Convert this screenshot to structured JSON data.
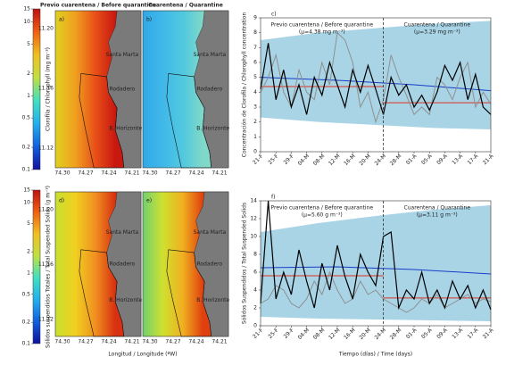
{
  "maps": {
    "colorbars": [
      {
        "label": "Clorofila / Chlorophyll (mg m⁻³)",
        "lim": [
          0.1,
          15
        ],
        "ticks": [
          0.1,
          0.2,
          0.5,
          1,
          2,
          5,
          10,
          15
        ],
        "log": true
      },
      {
        "label": "Sólidos suspendidos Totales / Total Suspended Solids (g m⁻³)",
        "lim": [
          0.1,
          15
        ],
        "ticks": [
          0.1,
          0.2,
          0.5,
          1,
          2,
          5,
          10,
          15
        ],
        "log": true
      }
    ],
    "panels": [
      {
        "letter": "a)",
        "title": "Previo cuarentena / Before quarantine",
        "colors": [
          "#e0d020",
          "#f0a020",
          "#e85018",
          "#c81810"
        ]
      },
      {
        "letter": "b)",
        "title": "Cuarentena / Quarantine",
        "colors": [
          "#30a8e8",
          "#40b8e8",
          "#50c8e0",
          "#80d8c8"
        ]
      },
      {
        "letter": "d)",
        "title": "",
        "colors": [
          "#c8e030",
          "#f0d020",
          "#f09020",
          "#d83010"
        ]
      },
      {
        "letter": "e)",
        "title": "",
        "colors": [
          "#70d070",
          "#d0e030",
          "#f0b020",
          "#e04010"
        ]
      }
    ],
    "places": [
      "Santa Marta",
      "Rodadero",
      "B. Horizonte"
    ],
    "lat_ticks": [
      "11.20",
      "11.16",
      "11.12"
    ],
    "lon_ticks": [
      "74.30",
      "74.27",
      "74.24",
      "74.21"
    ],
    "x_label": "Longitud / Longitude (ºW)"
  },
  "chart_data": [
    {
      "type": "line",
      "letter": "c)",
      "y_label": "Concentración de Clorofila / Chlorophyll concentration",
      "annotations": [
        "Previo cuarentena / Before quarantine",
        "(μ=4.38 mg m⁻³)",
        "Cuarentena / Quarantine",
        "(μ=3.29 mg m⁻³)"
      ],
      "xlim": [
        0,
        60
      ],
      "ylim": [
        0,
        9
      ],
      "yticks": [
        0,
        1,
        2,
        3,
        4,
        5,
        6,
        7,
        8,
        9
      ],
      "divider": 32,
      "xticks": [
        {
          "value": 0,
          "label": "21-F"
        },
        {
          "value": 4,
          "label": "25-F"
        },
        {
          "value": 8,
          "label": "29-F"
        },
        {
          "value": 12,
          "label": "04-M"
        },
        {
          "value": 16,
          "label": "08-M"
        },
        {
          "value": 20,
          "label": "12-M"
        },
        {
          "value": 24,
          "label": "16-M"
        },
        {
          "value": 28,
          "label": "20-M"
        },
        {
          "value": 32,
          "label": "24-M"
        },
        {
          "value": 36,
          "label": "28-M"
        },
        {
          "value": 40,
          "label": "01-A"
        },
        {
          "value": 44,
          "label": "05-A"
        },
        {
          "value": 48,
          "label": "09-A"
        },
        {
          "value": 52,
          "label": "13-A"
        },
        {
          "value": 56,
          "label": "17-A"
        },
        {
          "value": 60,
          "label": "21-A"
        }
      ],
      "series": [
        {
          "color": "#a8d4e6",
          "x": [
            0,
            15,
            30,
            45,
            60
          ],
          "values": [
            7.5,
            8.0,
            8.3,
            8.6,
            8.8
          ],
          "lower": [
            2.3,
            2.0,
            1.8,
            1.6,
            1.5
          ]
        },
        {
          "color": "#1a3cc8",
          "x": [
            0,
            20,
            40,
            60
          ],
          "values": [
            5.0,
            4.8,
            4.5,
            4.1
          ]
        },
        {
          "color": "#e03020",
          "x": [
            0,
            32
          ],
          "values": [
            4.38,
            4.38
          ]
        },
        {
          "color": "#e03020",
          "x": [
            32,
            60
          ],
          "values": [
            3.29,
            3.29
          ]
        },
        {
          "color": "#909090",
          "x": [
            0,
            2,
            4,
            6,
            8,
            10,
            12,
            14,
            16,
            18,
            20,
            22,
            24,
            26,
            28,
            30,
            32,
            34,
            36,
            38,
            40,
            42,
            44,
            46,
            48,
            50,
            52,
            54,
            56,
            58,
            60
          ],
          "values": [
            4.0,
            5.0,
            6.5,
            4.0,
            3.0,
            5.5,
            4.0,
            3.5,
            6.0,
            4.5,
            8.0,
            7.5,
            6.0,
            3.0,
            4.0,
            2.0,
            3.5,
            6.5,
            5.0,
            3.8,
            2.5,
            3.0,
            2.5,
            5.0,
            4.5,
            3.5,
            5.0,
            6.0,
            3.0,
            4.0,
            3.2
          ]
        },
        {
          "color": "#000000",
          "x": [
            0,
            2,
            4,
            6,
            8,
            10,
            12,
            14,
            16,
            18,
            20,
            22,
            24,
            26,
            28,
            30,
            32,
            34,
            36,
            38,
            40,
            42,
            44,
            46,
            48,
            50,
            52,
            54,
            56,
            58,
            60
          ],
          "values": [
            4.2,
            7.3,
            3.5,
            5.5,
            3.0,
            4.5,
            2.5,
            5.0,
            3.8,
            6.0,
            4.5,
            3.0,
            5.5,
            4.0,
            5.8,
            4.2,
            2.5,
            5.0,
            3.8,
            4.5,
            3.0,
            3.8,
            2.8,
            4.0,
            5.8,
            4.8,
            6.0,
            3.5,
            5.2,
            3.0,
            2.5
          ]
        }
      ]
    },
    {
      "type": "line",
      "letter": "f)",
      "y_label": "Sólidos Suspendidos / Total Suspended Solids",
      "x_label": "Tiempo (días) / Time (days)",
      "annotations": [
        "Previo cuarentena / Before quarantine",
        "(μ=5.60 g m⁻³)",
        "Cuarentena / Quarantine",
        "(μ=3.11 g m⁻³)"
      ],
      "xlim": [
        0,
        60
      ],
      "ylim": [
        0,
        14
      ],
      "yticks": [
        0,
        2,
        4,
        6,
        8,
        10,
        12,
        14
      ],
      "divider": 32,
      "xticks": [
        {
          "value": 0,
          "label": "21-F"
        },
        {
          "value": 4,
          "label": "25-F"
        },
        {
          "value": 8,
          "label": "29-F"
        },
        {
          "value": 12,
          "label": "04-M"
        },
        {
          "value": 16,
          "label": "08-M"
        },
        {
          "value": 20,
          "label": "12-M"
        },
        {
          "value": 24,
          "label": "16-M"
        },
        {
          "value": 28,
          "label": "20-M"
        },
        {
          "value": 32,
          "label": "24-M"
        },
        {
          "value": 36,
          "label": "28-M"
        },
        {
          "value": 40,
          "label": "01-A"
        },
        {
          "value": 44,
          "label": "05-A"
        },
        {
          "value": 48,
          "label": "09-A"
        },
        {
          "value": 52,
          "label": "13-A"
        },
        {
          "value": 56,
          "label": "17-A"
        },
        {
          "value": 60,
          "label": "21-A"
        }
      ],
      "series": [
        {
          "color": "#a8d4e6",
          "x": [
            0,
            15,
            30,
            45,
            60
          ],
          "values": [
            10.5,
            11.5,
            12.3,
            13.0,
            13.5
          ],
          "lower": [
            1.0,
            0.8,
            0.7,
            0.6,
            0.5
          ]
        },
        {
          "color": "#1a3cc8",
          "x": [
            0,
            20,
            40,
            60
          ],
          "values": [
            6.5,
            6.6,
            6.3,
            5.8
          ]
        },
        {
          "color": "#e03020",
          "x": [
            0,
            32
          ],
          "values": [
            5.6,
            5.6
          ]
        },
        {
          "color": "#e03020",
          "x": [
            32,
            60
          ],
          "values": [
            3.11,
            3.11
          ]
        },
        {
          "color": "#909090",
          "x": [
            0,
            2,
            4,
            6,
            8,
            10,
            12,
            14,
            16,
            18,
            20,
            22,
            24,
            26,
            28,
            30,
            32,
            34,
            36,
            38,
            40,
            42,
            44,
            46,
            48,
            50,
            52,
            54,
            56,
            58,
            60
          ],
          "values": [
            2.5,
            3.0,
            4.5,
            4.0,
            2.5,
            2.0,
            3.0,
            5.0,
            3.5,
            6.0,
            4.0,
            2.5,
            3.0,
            5.0,
            3.5,
            4.0,
            3.0,
            2.5,
            2.0,
            1.5,
            2.0,
            3.0,
            2.5,
            3.5,
            2.0,
            2.5,
            3.0,
            3.5,
            2.5,
            3.0,
            2.7
          ]
        },
        {
          "color": "#000000",
          "x": [
            0,
            2,
            4,
            6,
            8,
            10,
            12,
            14,
            16,
            18,
            20,
            22,
            24,
            26,
            28,
            30,
            32,
            34,
            36,
            38,
            40,
            42,
            44,
            46,
            48,
            50,
            52,
            54,
            56,
            58,
            60
          ],
          "values": [
            2.5,
            14,
            3.0,
            6.0,
            3.5,
            8.5,
            5.0,
            2.0,
            7.0,
            4.0,
            9.0,
            5.5,
            3.0,
            8.0,
            6.0,
            4.5,
            10.0,
            10.5,
            2.0,
            4.0,
            3.0,
            6.0,
            2.5,
            4.0,
            2.0,
            5.0,
            3.0,
            4.5,
            2.0,
            4.0,
            1.8
          ]
        }
      ]
    }
  ]
}
